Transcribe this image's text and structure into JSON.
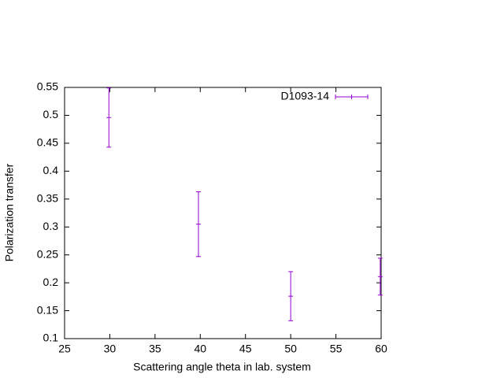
{
  "chart_data": {
    "type": "errorbar",
    "xlabel": "Scattering angle theta in lab. system",
    "ylabel": "Polarization transfer",
    "xlim": [
      25,
      60
    ],
    "xticks": [
      25,
      30,
      35,
      40,
      45,
      50,
      55,
      60
    ],
    "ylim": [
      0.1,
      0.55
    ],
    "yticks": [
      0.1,
      0.15,
      0.2,
      0.25,
      0.3,
      0.35,
      0.4,
      0.45,
      0.5,
      0.55
    ],
    "legend": "top-right",
    "series": [
      {
        "name": "D1093-14",
        "color": "#9400d3",
        "x": [
          29.9,
          39.8,
          50.0,
          59.9
        ],
        "values": [
          0.496,
          0.305,
          0.176,
          0.211
        ],
        "errors": [
          0.053,
          0.058,
          0.044,
          0.033
        ]
      }
    ]
  }
}
